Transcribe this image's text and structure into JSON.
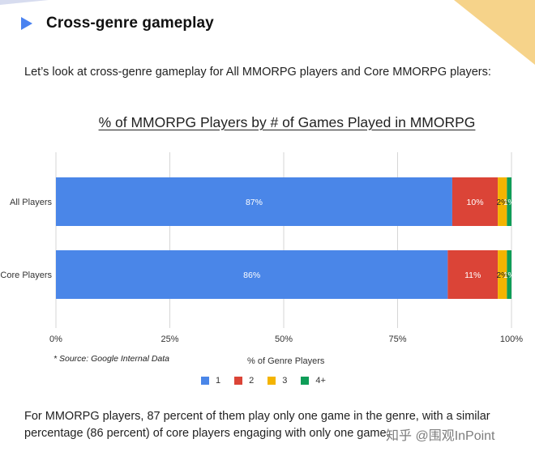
{
  "section": {
    "title": "Cross-genre gameplay"
  },
  "intro": "Let’s look at cross-genre gameplay for All MMORPG players and Core MMORPG players:",
  "colors": {
    "1": "#4a86e8",
    "2": "#db4437",
    "3": "#f4b400",
    "4+": "#0f9d58",
    "accent": "#4a82f0"
  },
  "chart_data": {
    "type": "bar",
    "orientation": "horizontal",
    "stacked": true,
    "title": "% of MMORPG Players by # of Games Played in MMORPG",
    "categories": [
      "All Players",
      "Core Players"
    ],
    "series": [
      {
        "name": "1",
        "values": [
          87,
          86
        ],
        "labels": [
          "87%",
          "86%"
        ],
        "color": "#4a86e8"
      },
      {
        "name": "2",
        "values": [
          10,
          11
        ],
        "labels": [
          "10%",
          "11%"
        ],
        "color": "#db4437"
      },
      {
        "name": "3",
        "values": [
          2,
          2
        ],
        "labels": [
          "2%",
          "2%"
        ],
        "color": "#f4b400"
      },
      {
        "name": "4+",
        "values": [
          1,
          1
        ],
        "labels": [
          "1%",
          "1%"
        ],
        "color": "#0f9d58"
      }
    ],
    "xlabel": "% of Genre Players",
    "ylabel": "",
    "xlim": [
      0,
      100
    ],
    "xticks": [
      0,
      25,
      50,
      75,
      100
    ],
    "xtick_labels": [
      "0%",
      "25%",
      "50%",
      "75%",
      "100%"
    ],
    "grid": true,
    "legend": "bottom",
    "source": "* Source: Google Internal Data"
  },
  "conclusion": "For MMORPG players, 87 percent of them play only one game in the genre, with a similar percentage (86 percent) of core players engaging with only one game.",
  "watermark": "知乎 @围观InPoint"
}
